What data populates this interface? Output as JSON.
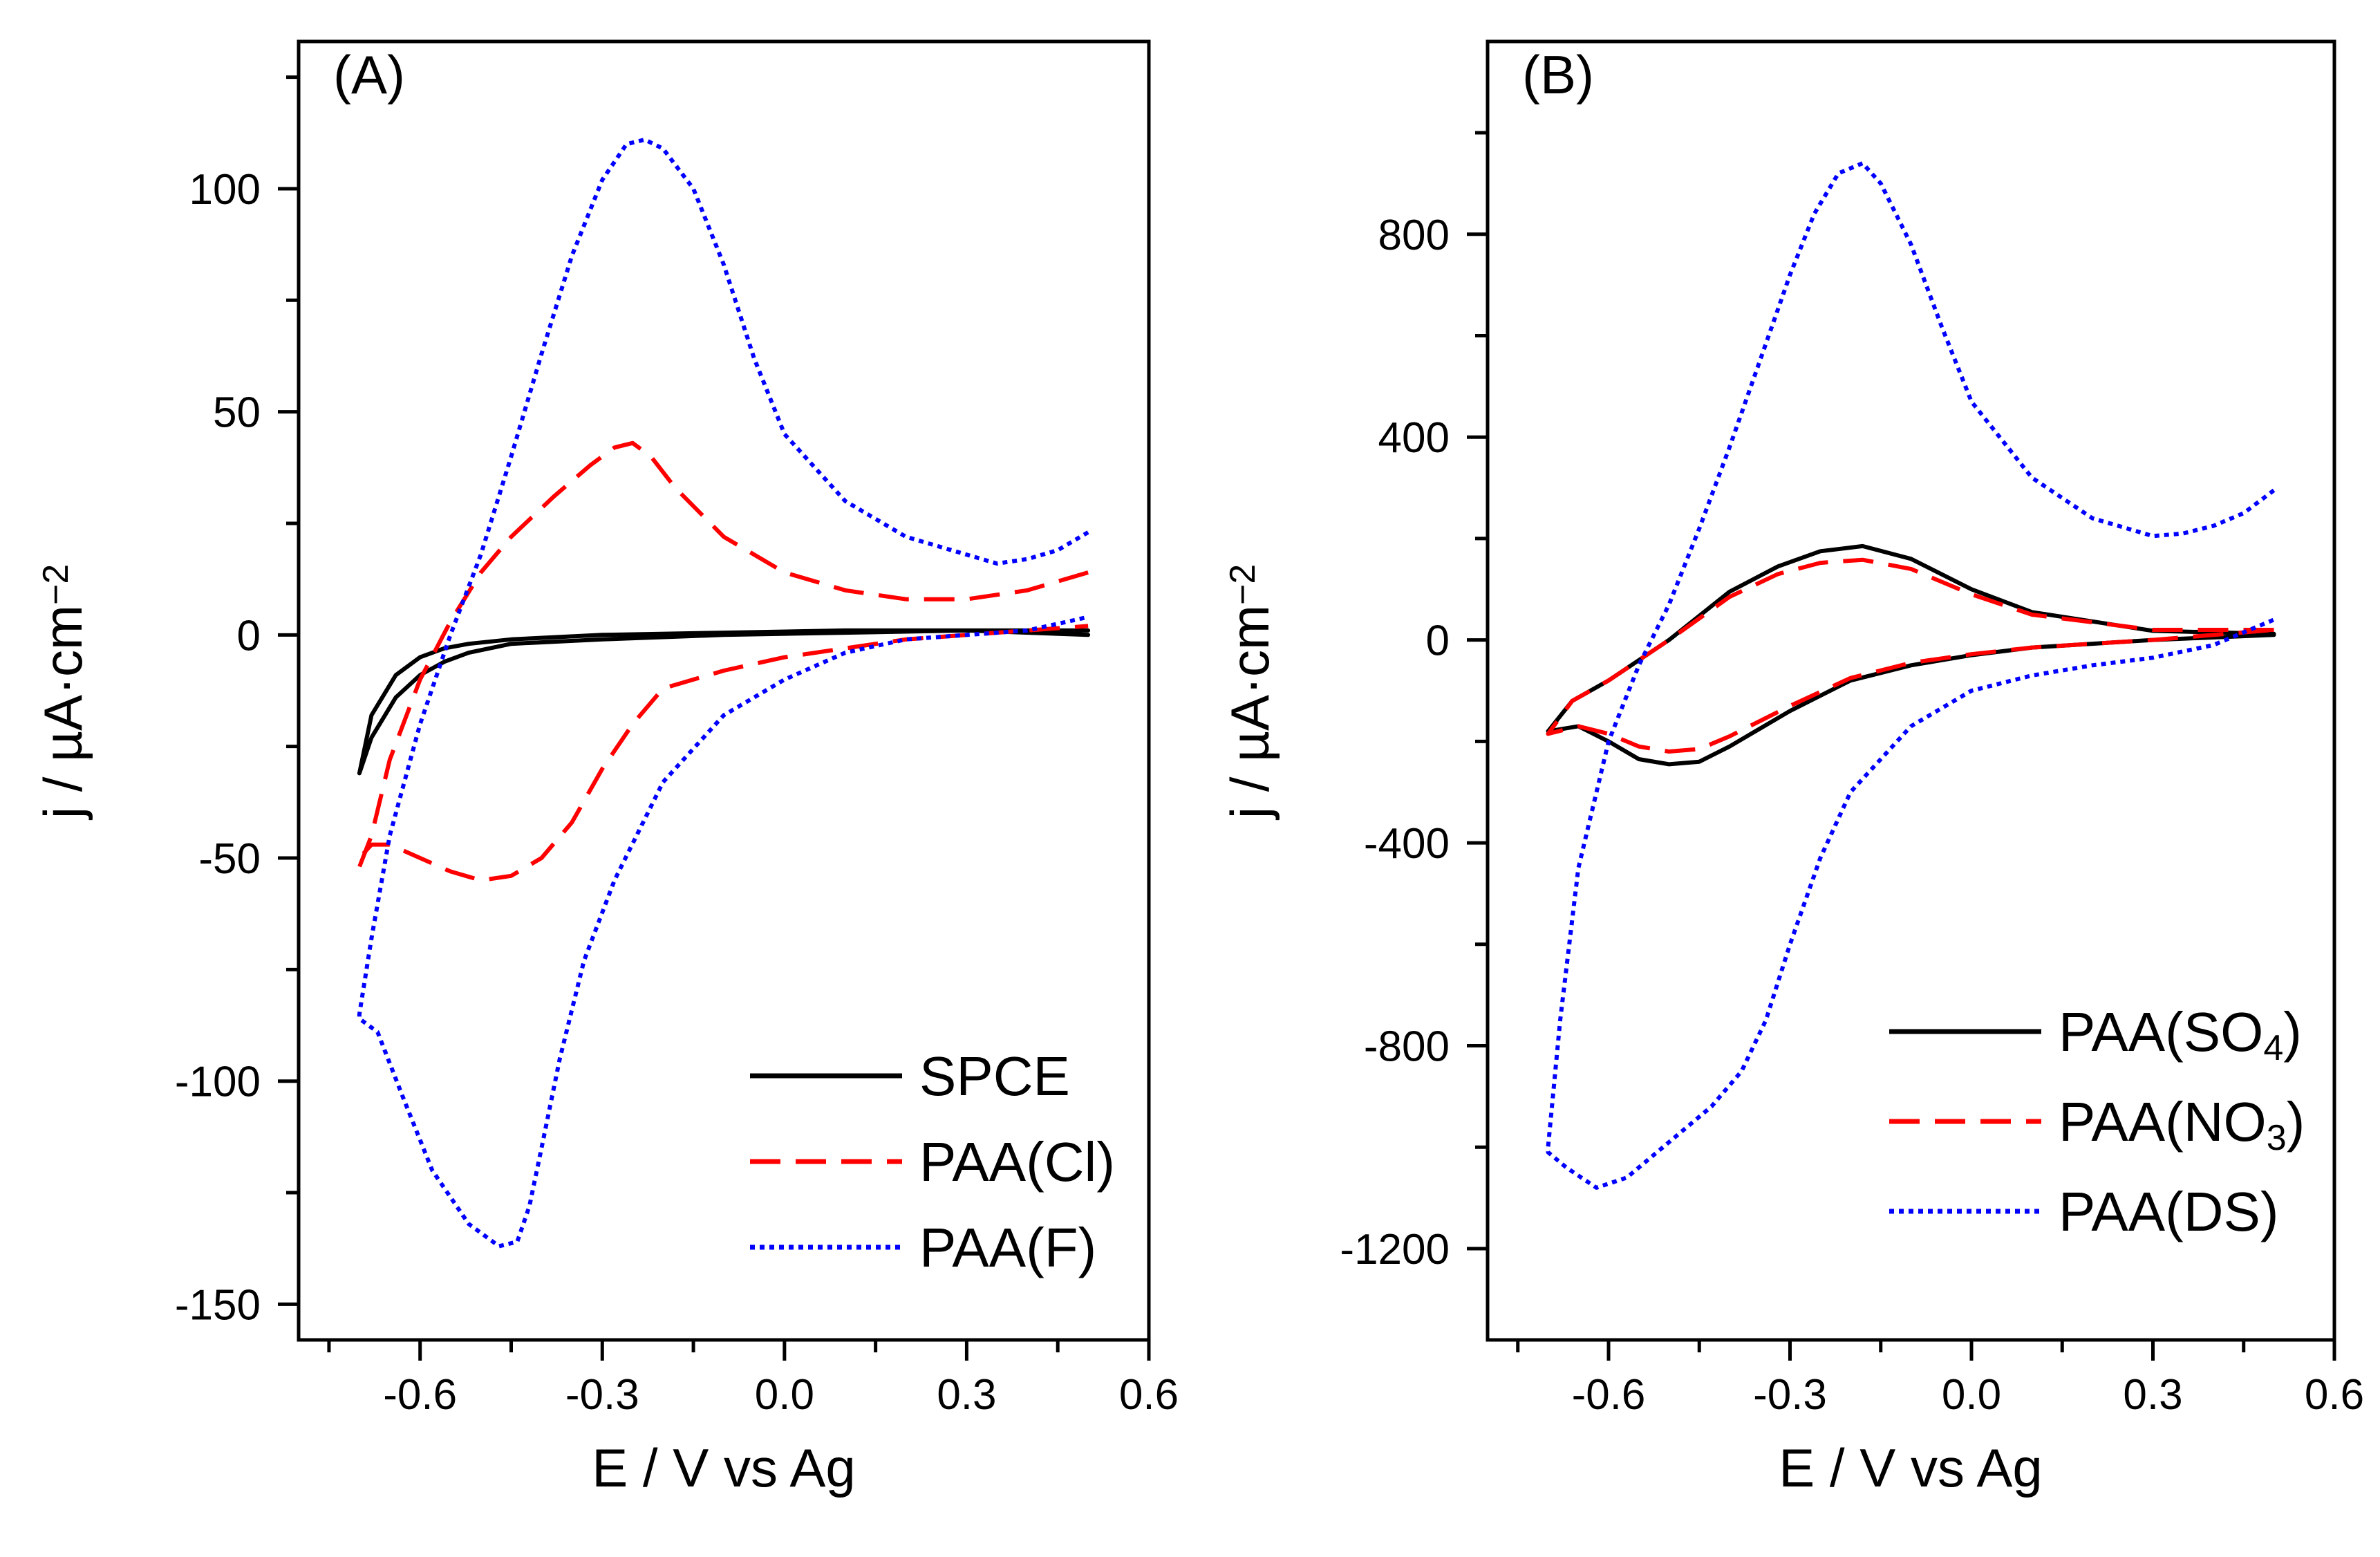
{
  "chart_data": [
    {
      "type": "line",
      "panel_label": "(A)",
      "xlabel": "E / V vs Ag",
      "ylabel": {
        "prefix": "j / ",
        "unit": "µA·cm",
        "exp": "−2"
      },
      "xlim": [
        -0.8,
        0.6
      ],
      "ylim": [
        -158,
        133
      ],
      "xticks": [
        -0.6,
        -0.3,
        0.0,
        0.3,
        0.6
      ],
      "xtick_labels": [
        "-0.6",
        "-0.3",
        "0.0",
        "0.3",
        "0.6"
      ],
      "yticks": [
        -150,
        -100,
        -50,
        0,
        50,
        100
      ],
      "ytick_labels": [
        "-150",
        "-100",
        "-50",
        "0",
        "50",
        "100"
      ],
      "legend_position": "bottom-right",
      "series": [
        {
          "name": "SPCE",
          "sub": "",
          "suffix": "",
          "color": "#000000",
          "dash": "solid",
          "x": [
            0.5,
            0.3,
            0.1,
            -0.1,
            -0.3,
            -0.45,
            -0.52,
            -0.56,
            -0.6,
            -0.64,
            -0.68,
            -0.7,
            -0.68,
            -0.64,
            -0.6,
            -0.56,
            -0.52,
            -0.45,
            -0.3,
            -0.1,
            0.1,
            0.3,
            0.5
          ],
          "y": [
            1,
            1,
            1,
            0.5,
            0,
            -1,
            -2,
            -3,
            -5,
            -9,
            -18,
            -31,
            -23,
            -14,
            -9,
            -6,
            -4,
            -2,
            -1,
            0,
            0.5,
            1,
            0
          ]
        },
        {
          "name": "PAA(Cl)",
          "sub": "",
          "suffix": "",
          "color": "#ff0000",
          "dash": "dashed",
          "x": [
            0.5,
            0.4,
            0.3,
            0.2,
            0.1,
            0.0,
            -0.1,
            -0.18,
            -0.22,
            -0.25,
            -0.28,
            -0.32,
            -0.38,
            -0.45,
            -0.5,
            -0.55,
            -0.6,
            -0.65,
            -0.68,
            -0.7,
            -0.7,
            -0.68,
            -0.65,
            -0.6,
            -0.55,
            -0.5,
            -0.45,
            -0.4,
            -0.35,
            -0.3,
            -0.25,
            -0.2,
            -0.15,
            -0.1,
            0.0,
            0.1,
            0.2,
            0.3,
            0.4,
            0.5
          ],
          "y": [
            14,
            10,
            8,
            8,
            10,
            14,
            22,
            33,
            40,
            43,
            42,
            38,
            31,
            22,
            14,
            3,
            -10,
            -28,
            -45,
            -52,
            -50,
            -47,
            -47,
            -50,
            -53,
            -55,
            -54,
            -50,
            -42,
            -30,
            -20,
            -12,
            -10,
            -8,
            -5,
            -3,
            -1,
            0,
            1,
            2
          ]
        },
        {
          "name": "PAA(F)",
          "sub": "",
          "suffix": "",
          "color": "#0000ff",
          "dash": "dotted",
          "x": [
            0.5,
            0.45,
            0.4,
            0.35,
            0.3,
            0.2,
            0.1,
            0.0,
            -0.05,
            -0.1,
            -0.15,
            -0.2,
            -0.23,
            -0.26,
            -0.3,
            -0.35,
            -0.4,
            -0.45,
            -0.5,
            -0.55,
            -0.6,
            -0.65,
            -0.68,
            -0.7,
            -0.7,
            -0.67,
            -0.63,
            -0.58,
            -0.52,
            -0.47,
            -0.44,
            -0.42,
            -0.4,
            -0.37,
            -0.33,
            -0.28,
            -0.2,
            -0.1,
            0.0,
            0.1,
            0.2,
            0.3,
            0.4,
            0.5
          ],
          "y": [
            23,
            19,
            17,
            16,
            18,
            22,
            30,
            45,
            62,
            83,
            100,
            109,
            111,
            110,
            102,
            85,
            63,
            40,
            18,
            0,
            -20,
            -45,
            -68,
            -85,
            -86,
            -89,
            -103,
            -120,
            -132,
            -137,
            -136,
            -128,
            -115,
            -95,
            -73,
            -55,
            -33,
            -18,
            -10,
            -4,
            -1,
            0,
            1,
            4
          ]
        }
      ]
    },
    {
      "type": "line",
      "panel_label": "(B)",
      "xlabel": "E / V vs Ag",
      "ylabel": {
        "prefix": "j / ",
        "unit": "µA·cm",
        "exp": "−2"
      },
      "xlim": [
        -0.8,
        0.6
      ],
      "ylim": [
        -1380,
        1180
      ],
      "xticks": [
        -0.6,
        -0.3,
        0.0,
        0.3,
        0.6
      ],
      "xtick_labels": [
        "-0.6",
        "-0.3",
        "0.0",
        "0.3",
        "0.6"
      ],
      "yticks": [
        -1200,
        -800,
        -400,
        0,
        400,
        800
      ],
      "ytick_labels": [
        "-1200",
        "-800",
        "-400",
        "0",
        "400",
        "800"
      ],
      "legend_position": "bottom-right",
      "series": [
        {
          "name": "PAA(SO",
          "sub": "4",
          "suffix": ")",
          "color": "#000000",
          "dash": "solid",
          "x": [
            0.5,
            0.3,
            0.1,
            0.0,
            -0.1,
            -0.18,
            -0.25,
            -0.32,
            -0.4,
            -0.5,
            -0.6,
            -0.66,
            -0.7,
            -0.65,
            -0.6,
            -0.55,
            -0.5,
            -0.45,
            -0.4,
            -0.3,
            -0.2,
            -0.1,
            0.0,
            0.1,
            0.3,
            0.5
          ],
          "y": [
            12,
            18,
            55,
            100,
            160,
            185,
            175,
            145,
            95,
            0,
            -80,
            -120,
            -180,
            -170,
            -200,
            -235,
            -245,
            -240,
            -210,
            -140,
            -80,
            -50,
            -30,
            -15,
            0,
            10
          ]
        },
        {
          "name": "PAA(NO",
          "sub": "3",
          "suffix": ")",
          "color": "#ff0000",
          "dash": "dashed",
          "x": [
            0.5,
            0.3,
            0.1,
            0.0,
            -0.1,
            -0.18,
            -0.25,
            -0.32,
            -0.4,
            -0.5,
            -0.6,
            -0.66,
            -0.7,
            -0.65,
            -0.6,
            -0.55,
            -0.5,
            -0.45,
            -0.4,
            -0.3,
            -0.2,
            -0.1,
            0.0,
            0.1,
            0.3,
            0.5
          ],
          "y": [
            20,
            20,
            50,
            90,
            140,
            158,
            152,
            130,
            85,
            0,
            -80,
            -120,
            -185,
            -170,
            -185,
            -210,
            -220,
            -215,
            -190,
            -130,
            -75,
            -45,
            -28,
            -15,
            0,
            20
          ]
        },
        {
          "name": "PAA(DS)",
          "sub": "",
          "suffix": "",
          "color": "#0000ff",
          "dash": "dotted",
          "x": [
            0.5,
            0.45,
            0.4,
            0.35,
            0.3,
            0.2,
            0.1,
            0.0,
            -0.05,
            -0.1,
            -0.15,
            -0.18,
            -0.22,
            -0.26,
            -0.3,
            -0.35,
            -0.4,
            -0.45,
            -0.5,
            -0.55,
            -0.6,
            -0.65,
            -0.68,
            -0.7,
            -0.7,
            -0.67,
            -0.62,
            -0.57,
            -0.5,
            -0.43,
            -0.38,
            -0.34,
            -0.3,
            -0.25,
            -0.2,
            -0.1,
            0.0,
            0.1,
            0.2,
            0.3,
            0.4,
            0.5
          ],
          "y": [
            295,
            250,
            225,
            210,
            205,
            240,
            320,
            470,
            620,
            780,
            900,
            940,
            920,
            840,
            720,
            550,
            380,
            220,
            70,
            -50,
            -200,
            -450,
            -750,
            -1000,
            -1010,
            -1040,
            -1080,
            -1060,
            -990,
            -920,
            -850,
            -750,
            -600,
            -430,
            -300,
            -170,
            -100,
            -70,
            -50,
            -35,
            -10,
            40
          ]
        }
      ]
    }
  ]
}
